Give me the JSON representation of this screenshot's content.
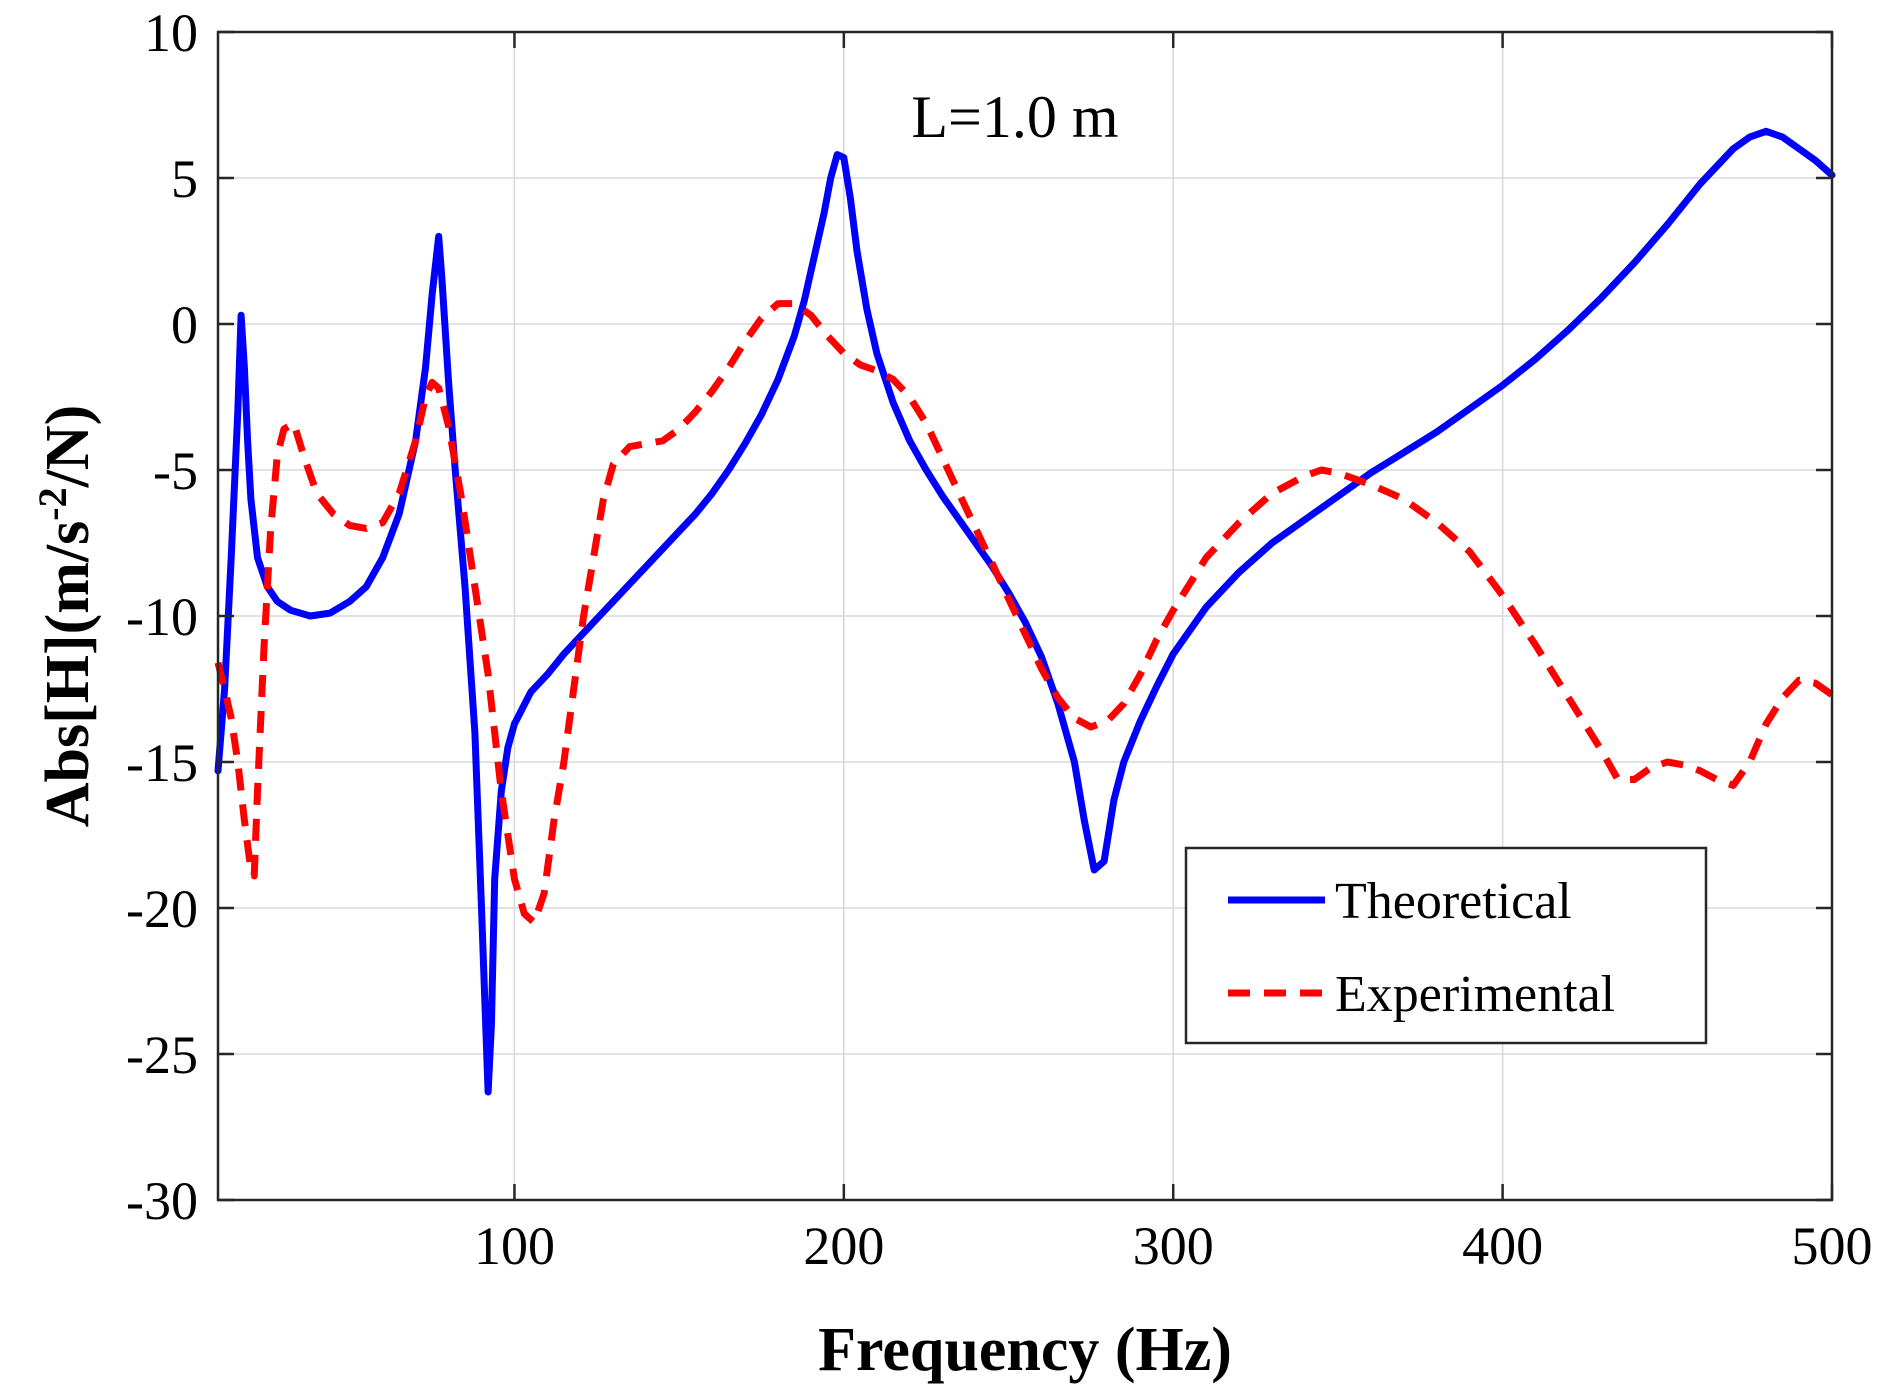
{
  "chart_data": {
    "type": "line",
    "title": "",
    "annotation": "L=1.0 m",
    "xlabel": "Frequency (Hz)",
    "ylabel_main": "Abs[H](m/s",
    "ylabel_sup": "-2",
    "ylabel_end": "/N)",
    "xlim": [
      10,
      500
    ],
    "ylim": [
      -30,
      10
    ],
    "grid": true,
    "legend_position": "lower-right",
    "x_ticks": [
      {
        "value": 100,
        "label": "100"
      },
      {
        "value": 200,
        "label": "200"
      },
      {
        "value": 300,
        "label": "300"
      },
      {
        "value": 400,
        "label": "400"
      },
      {
        "value": 500,
        "label": "500"
      }
    ],
    "y_ticks": [
      {
        "value": 10,
        "label": "10"
      },
      {
        "value": 5,
        "label": "5"
      },
      {
        "value": 0,
        "label": "0"
      },
      {
        "value": -5,
        "label": "-5"
      },
      {
        "value": -10,
        "label": "-10"
      },
      {
        "value": -15,
        "label": "-15"
      },
      {
        "value": -20,
        "label": "-20"
      },
      {
        "value": -25,
        "label": "-25"
      },
      {
        "value": -30,
        "label": "-30"
      }
    ],
    "series": [
      {
        "name": "Theoretical",
        "color": "#0000ff",
        "style": "solid",
        "points": [
          [
            10,
            -15.3
          ],
          [
            12,
            -12.5
          ],
          [
            14,
            -8
          ],
          [
            16,
            -3
          ],
          [
            17,
            0.3
          ],
          [
            18,
            -1.5
          ],
          [
            19,
            -4
          ],
          [
            20,
            -6
          ],
          [
            22,
            -8
          ],
          [
            25,
            -9
          ],
          [
            28,
            -9.5
          ],
          [
            32,
            -9.8
          ],
          [
            38,
            -10
          ],
          [
            44,
            -9.9
          ],
          [
            50,
            -9.5
          ],
          [
            55,
            -9
          ],
          [
            60,
            -8
          ],
          [
            65,
            -6.5
          ],
          [
            70,
            -4
          ],
          [
            73,
            -1.5
          ],
          [
            75,
            1
          ],
          [
            77,
            3
          ],
          [
            78,
            1.5
          ],
          [
            80,
            -2
          ],
          [
            82,
            -5
          ],
          [
            85,
            -9
          ],
          [
            88,
            -14
          ],
          [
            90,
            -20
          ],
          [
            92,
            -26.3
          ],
          [
            93,
            -24
          ],
          [
            94,
            -19
          ],
          [
            96,
            -16
          ],
          [
            98,
            -14.5
          ],
          [
            100,
            -13.7
          ],
          [
            105,
            -12.6
          ],
          [
            110,
            -12
          ],
          [
            115,
            -11.3
          ],
          [
            120,
            -10.7
          ],
          [
            125,
            -10.1
          ],
          [
            130,
            -9.5
          ],
          [
            135,
            -8.9
          ],
          [
            140,
            -8.3
          ],
          [
            145,
            -7.7
          ],
          [
            150,
            -7.1
          ],
          [
            155,
            -6.5
          ],
          [
            160,
            -5.8
          ],
          [
            165,
            -5
          ],
          [
            170,
            -4.1
          ],
          [
            175,
            -3.1
          ],
          [
            180,
            -1.9
          ],
          [
            185,
            -0.4
          ],
          [
            188,
            0.8
          ],
          [
            191,
            2.3
          ],
          [
            194,
            3.8
          ],
          [
            196,
            5
          ],
          [
            198,
            5.8
          ],
          [
            200,
            5.7
          ],
          [
            202,
            4.3
          ],
          [
            204,
            2.5
          ],
          [
            207,
            0.5
          ],
          [
            210,
            -1
          ],
          [
            215,
            -2.7
          ],
          [
            220,
            -4
          ],
          [
            225,
            -5
          ],
          [
            230,
            -5.9
          ],
          [
            235,
            -6.7
          ],
          [
            240,
            -7.5
          ],
          [
            245,
            -8.3
          ],
          [
            250,
            -9.2
          ],
          [
            255,
            -10.2
          ],
          [
            260,
            -11.4
          ],
          [
            265,
            -13
          ],
          [
            270,
            -15
          ],
          [
            273,
            -17
          ],
          [
            276,
            -18.7
          ],
          [
            279,
            -18.4
          ],
          [
            282,
            -16.3
          ],
          [
            285,
            -15
          ],
          [
            290,
            -13.6
          ],
          [
            295,
            -12.4
          ],
          [
            300,
            -11.3
          ],
          [
            310,
            -9.7
          ],
          [
            320,
            -8.5
          ],
          [
            330,
            -7.5
          ],
          [
            340,
            -6.7
          ],
          [
            350,
            -5.9
          ],
          [
            360,
            -5.1
          ],
          [
            370,
            -4.4
          ],
          [
            380,
            -3.7
          ],
          [
            390,
            -2.9
          ],
          [
            400,
            -2.1
          ],
          [
            410,
            -1.2
          ],
          [
            420,
            -0.2
          ],
          [
            430,
            0.9
          ],
          [
            440,
            2.1
          ],
          [
            450,
            3.4
          ],
          [
            460,
            4.8
          ],
          [
            470,
            6
          ],
          [
            475,
            6.4
          ],
          [
            480,
            6.6
          ],
          [
            485,
            6.4
          ],
          [
            490,
            6
          ],
          [
            495,
            5.6
          ],
          [
            500,
            5.1
          ]
        ]
      },
      {
        "name": "Experimental",
        "color": "#ff0000",
        "style": "dashed",
        "points": [
          [
            10,
            -11.6
          ],
          [
            12,
            -12.5
          ],
          [
            14,
            -13.5
          ],
          [
            16,
            -15
          ],
          [
            18,
            -17
          ],
          [
            20,
            -18.7
          ],
          [
            21,
            -18.9
          ],
          [
            22,
            -16
          ],
          [
            24,
            -11
          ],
          [
            26,
            -7
          ],
          [
            28,
            -4.5
          ],
          [
            30,
            -3.6
          ],
          [
            33,
            -3.4
          ],
          [
            36,
            -4.5
          ],
          [
            40,
            -5.8
          ],
          [
            45,
            -6.5
          ],
          [
            50,
            -6.9
          ],
          [
            55,
            -7
          ],
          [
            60,
            -6.8
          ],
          [
            65,
            -5.8
          ],
          [
            70,
            -4
          ],
          [
            73,
            -2.5
          ],
          [
            75,
            -2
          ],
          [
            77,
            -2.2
          ],
          [
            80,
            -3.5
          ],
          [
            84,
            -6
          ],
          [
            88,
            -9
          ],
          [
            92,
            -12
          ],
          [
            96,
            -16
          ],
          [
            100,
            -19
          ],
          [
            103,
            -20.2
          ],
          [
            106,
            -20.5
          ],
          [
            109,
            -19.5
          ],
          [
            112,
            -17
          ],
          [
            115,
            -15
          ],
          [
            118,
            -12.5
          ],
          [
            121,
            -10
          ],
          [
            124,
            -8
          ],
          [
            127,
            -6
          ],
          [
            130,
            -4.8
          ],
          [
            135,
            -4.2
          ],
          [
            140,
            -4.1
          ],
          [
            145,
            -4
          ],
          [
            150,
            -3.6
          ],
          [
            155,
            -3
          ],
          [
            160,
            -2.3
          ],
          [
            165,
            -1.5
          ],
          [
            170,
            -0.6
          ],
          [
            175,
            0.2
          ],
          [
            180,
            0.7
          ],
          [
            185,
            0.7
          ],
          [
            190,
            0.3
          ],
          [
            195,
            -0.4
          ],
          [
            200,
            -1
          ],
          [
            205,
            -1.4
          ],
          [
            210,
            -1.6
          ],
          [
            215,
            -1.9
          ],
          [
            220,
            -2.5
          ],
          [
            225,
            -3.4
          ],
          [
            230,
            -4.6
          ],
          [
            235,
            -5.8
          ],
          [
            240,
            -7
          ],
          [
            245,
            -8.2
          ],
          [
            250,
            -9.4
          ],
          [
            255,
            -10.6
          ],
          [
            260,
            -11.8
          ],
          [
            265,
            -12.8
          ],
          [
            270,
            -13.5
          ],
          [
            275,
            -13.8
          ],
          [
            280,
            -13.6
          ],
          [
            285,
            -13
          ],
          [
            290,
            -12
          ],
          [
            295,
            -10.8
          ],
          [
            300,
            -9.8
          ],
          [
            310,
            -8
          ],
          [
            320,
            -6.8
          ],
          [
            330,
            -5.8
          ],
          [
            340,
            -5.2
          ],
          [
            345,
            -5
          ],
          [
            350,
            -5.1
          ],
          [
            360,
            -5.5
          ],
          [
            370,
            -6
          ],
          [
            380,
            -6.8
          ],
          [
            390,
            -7.8
          ],
          [
            400,
            -9.3
          ],
          [
            410,
            -11
          ],
          [
            420,
            -12.8
          ],
          [
            430,
            -14.6
          ],
          [
            435,
            -15.6
          ],
          [
            440,
            -15.6
          ],
          [
            445,
            -15.2
          ],
          [
            450,
            -15
          ],
          [
            455,
            -15.1
          ],
          [
            460,
            -15.3
          ],
          [
            465,
            -15.6
          ],
          [
            470,
            -15.8
          ],
          [
            475,
            -15
          ],
          [
            480,
            -13.7
          ],
          [
            485,
            -12.8
          ],
          [
            490,
            -12.2
          ],
          [
            495,
            -12.3
          ],
          [
            500,
            -12.7
          ]
        ]
      }
    ]
  }
}
